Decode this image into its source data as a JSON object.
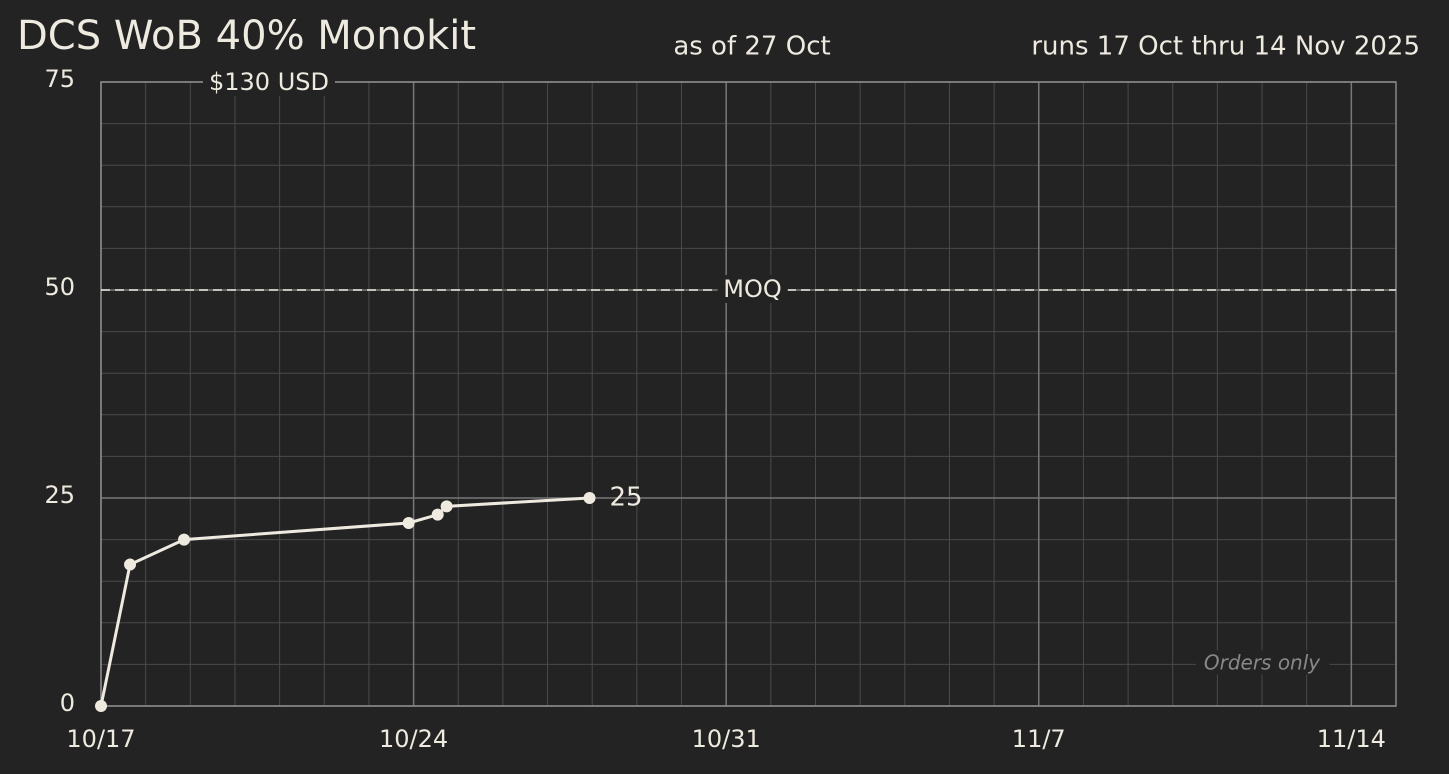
{
  "chart_data": {
    "type": "line",
    "title": "DCS WoB 40% Monokit",
    "subtitle": "as of 27 Oct",
    "run_dates": "runs 17 Oct thru 14 Nov 2025",
    "price": "$130 USD",
    "note": "Orders only",
    "x": [
      17,
      17.65,
      18.86,
      23.89,
      24.54,
      24.74,
      27.94
    ],
    "values": [
      0,
      17,
      20,
      22,
      23,
      24,
      25
    ],
    "last_value_label": true,
    "color": "#eeeae0",
    "xlim": [
      17,
      46
    ],
    "xticks": [
      {
        "value": 17,
        "label": "10/17"
      },
      {
        "value": 24,
        "label": "10/24"
      },
      {
        "value": 31,
        "label": "10/31"
      },
      {
        "value": 38,
        "label": "11/7"
      },
      {
        "value": 45,
        "label": "11/14"
      }
    ],
    "ylim": [
      0,
      75
    ],
    "yticks": [
      0,
      25,
      50,
      75
    ],
    "grid": true,
    "minor_grid_x_step": 1,
    "minor_grid_y_step": 5,
    "reference_line": {
      "value": 50,
      "label": "MOQ"
    }
  }
}
